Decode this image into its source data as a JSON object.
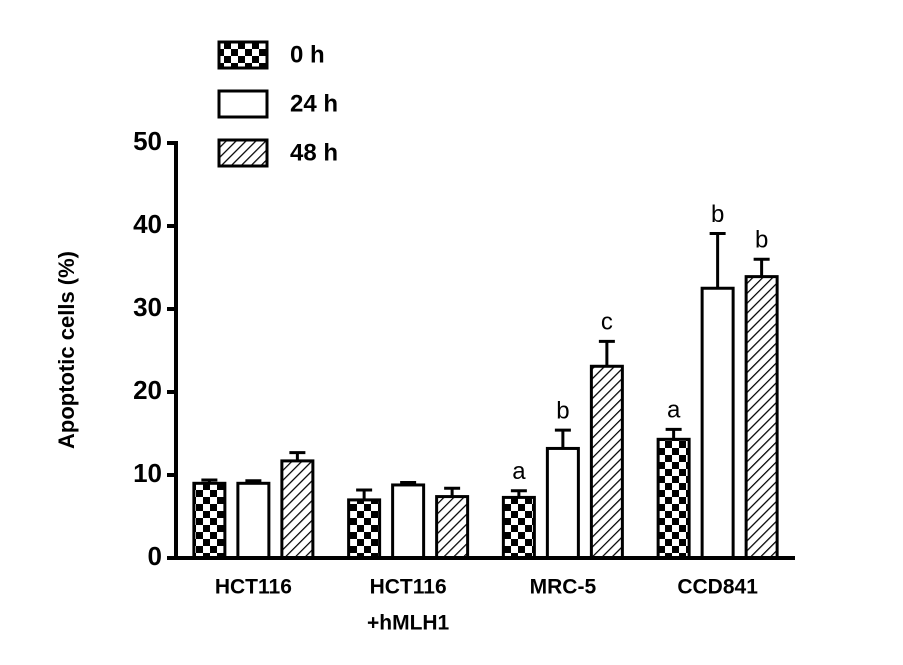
{
  "chart_data": {
    "type": "bar",
    "y_label": "Apoptotic cells (%)",
    "categories": [
      [
        "HCT116"
      ],
      [
        "HCT116",
        "+hMLH1"
      ],
      [
        "MRC-5"
      ],
      [
        "CCD841"
      ]
    ],
    "series": [
      {
        "name": "0 h",
        "color": "#000000",
        "pattern": "checker",
        "values": [
          9,
          7,
          7.3,
          14.3
        ],
        "errors": [
          0.4,
          1.2,
          0.8,
          1.2
        ],
        "annotations": [
          null,
          null,
          "a",
          "a"
        ]
      },
      {
        "name": "24 h",
        "color": "#000000",
        "pattern": "none",
        "values": [
          9,
          8.8,
          13.2,
          32.5
        ],
        "errors": [
          0.3,
          0.3,
          2.2,
          6.6
        ],
        "annotations": [
          null,
          null,
          "b",
          "b"
        ]
      },
      {
        "name": "48 h",
        "color": "#000000",
        "pattern": "hatch",
        "values": [
          11.7,
          7.4,
          23.1,
          33.9
        ],
        "errors": [
          1.0,
          1.0,
          3.0,
          2.1
        ],
        "annotations": [
          null,
          null,
          "c",
          "b"
        ]
      }
    ],
    "ylim": [
      0,
      50
    ],
    "yticks": [
      0,
      10,
      20,
      30,
      40,
      50
    ],
    "grid": false
  }
}
